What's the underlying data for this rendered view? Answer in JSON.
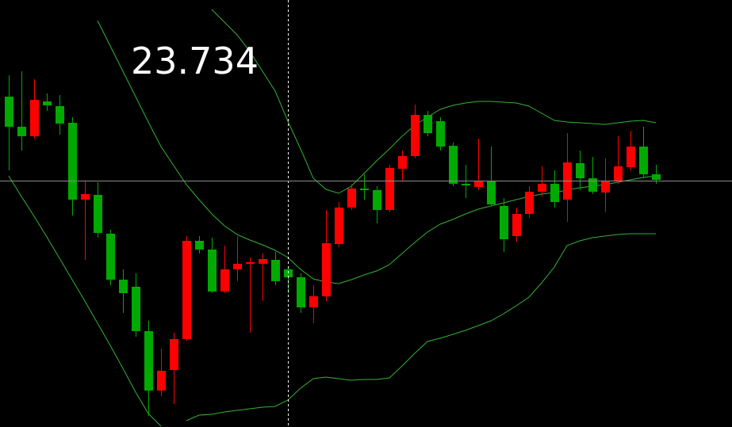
{
  "chart_data": {
    "type": "candlestick",
    "crosshair_value": 23.734,
    "ylim": [
      23.423,
      23.962
    ],
    "up_color": "#ff0000",
    "down_color": "#00aa00",
    "band_color": "#34b234",
    "open": [
      23.84,
      23.802,
      23.79,
      23.834,
      23.828,
      23.807,
      23.71,
      23.716,
      23.667,
      23.609,
      23.6,
      23.544,
      23.469,
      23.495,
      23.534,
      23.658,
      23.647,
      23.594,
      23.622,
      23.629,
      23.629,
      23.634,
      23.622,
      23.612,
      23.574,
      23.588,
      23.654,
      23.7,
      23.724,
      23.722,
      23.697,
      23.749,
      23.765,
      23.817,
      23.809,
      23.778,
      23.73,
      23.726,
      23.734,
      23.702,
      23.664,
      23.692,
      23.72,
      23.73,
      23.71,
      23.756,
      23.737,
      23.719,
      23.734,
      23.751,
      23.777,
      23.742
    ],
    "high": [
      23.867,
      23.872,
      23.862,
      23.844,
      23.842,
      23.814,
      23.734,
      23.732,
      23.672,
      23.622,
      23.617,
      23.557,
      23.522,
      23.542,
      23.664,
      23.664,
      23.662,
      23.652,
      23.664,
      23.637,
      23.642,
      23.644,
      23.626,
      23.617,
      23.602,
      23.697,
      23.707,
      23.73,
      23.742,
      23.727,
      23.754,
      23.772,
      23.83,
      23.822,
      23.814,
      23.782,
      23.754,
      23.787,
      23.777,
      23.712,
      23.7,
      23.727,
      23.752,
      23.747,
      23.794,
      23.772,
      23.764,
      23.762,
      23.79,
      23.797,
      23.802,
      23.754
    ],
    "low": [
      23.747,
      23.772,
      23.787,
      23.822,
      23.792,
      23.69,
      23.634,
      23.662,
      23.602,
      23.567,
      23.537,
      23.437,
      23.462,
      23.452,
      23.532,
      23.642,
      23.592,
      23.592,
      23.607,
      23.542,
      23.582,
      23.602,
      23.592,
      23.567,
      23.554,
      23.582,
      23.65,
      23.697,
      23.71,
      23.68,
      23.694,
      23.734,
      23.762,
      23.79,
      23.772,
      23.727,
      23.712,
      23.722,
      23.702,
      23.644,
      23.657,
      23.687,
      23.714,
      23.7,
      23.682,
      23.722,
      23.717,
      23.694,
      23.73,
      23.747,
      23.737,
      23.73
    ],
    "close": [
      23.802,
      23.79,
      23.836,
      23.829,
      23.806,
      23.71,
      23.717,
      23.668,
      23.609,
      23.592,
      23.544,
      23.469,
      23.494,
      23.534,
      23.658,
      23.647,
      23.594,
      23.622,
      23.629,
      23.631,
      23.635,
      23.607,
      23.612,
      23.574,
      23.588,
      23.655,
      23.7,
      23.724,
      23.722,
      23.697,
      23.75,
      23.765,
      23.817,
      23.794,
      23.777,
      23.73,
      23.728,
      23.734,
      23.704,
      23.66,
      23.692,
      23.72,
      23.73,
      23.707,
      23.757,
      23.737,
      23.72,
      23.734,
      23.752,
      23.777,
      23.742,
      23.735
    ],
    "bands": [
      {
        "values": [
          null,
          null,
          null,
          null,
          null,
          null,
          null,
          null,
          null,
          null,
          null,
          null,
          null,
          null,
          null,
          null,
          23.95,
          23.934,
          23.918,
          23.897,
          23.872,
          23.847,
          23.809,
          23.774,
          23.737,
          23.723,
          23.718,
          23.727,
          23.743,
          23.759,
          23.774,
          23.79,
          23.804,
          23.814,
          23.824,
          23.829,
          23.832,
          23.834,
          23.834,
          23.833,
          23.832,
          23.828,
          23.819,
          23.81,
          23.808,
          23.807,
          23.806,
          23.805,
          23.807,
          23.809,
          23.81,
          23.807
        ]
      },
      {
        "values": [
          null,
          null,
          null,
          null,
          null,
          null,
          null,
          23.936,
          23.904,
          23.872,
          23.84,
          23.808,
          23.777,
          23.753,
          23.729,
          23.71,
          23.692,
          23.677,
          23.666,
          23.659,
          23.653,
          23.646,
          23.637,
          23.622,
          23.61,
          23.606,
          23.604,
          23.609,
          23.615,
          23.62,
          23.628,
          23.642,
          23.656,
          23.669,
          23.679,
          23.685,
          23.692,
          23.698,
          23.702,
          23.706,
          23.71,
          23.714,
          23.717,
          23.719,
          23.722,
          23.725,
          23.727,
          23.729,
          23.732,
          23.735,
          23.738,
          23.74
        ]
      },
      {
        "values": [
          23.74,
          23.714,
          23.689,
          23.663,
          23.636,
          23.609,
          23.582,
          23.554,
          23.526,
          23.497,
          23.467,
          23.44,
          23.424,
          null,
          23.431,
          23.438,
          23.439,
          23.442,
          23.444,
          23.446,
          23.448,
          23.449,
          23.457,
          23.472,
          23.484,
          23.486,
          23.484,
          23.482,
          23.483,
          23.483,
          23.485,
          23.5,
          23.516,
          23.531,
          23.535,
          23.54,
          23.545,
          23.551,
          23.557,
          23.566,
          23.576,
          23.587,
          23.605,
          23.625,
          23.652,
          23.658,
          23.662,
          23.664,
          23.666,
          23.667,
          23.667,
          23.667
        ]
      }
    ]
  }
}
